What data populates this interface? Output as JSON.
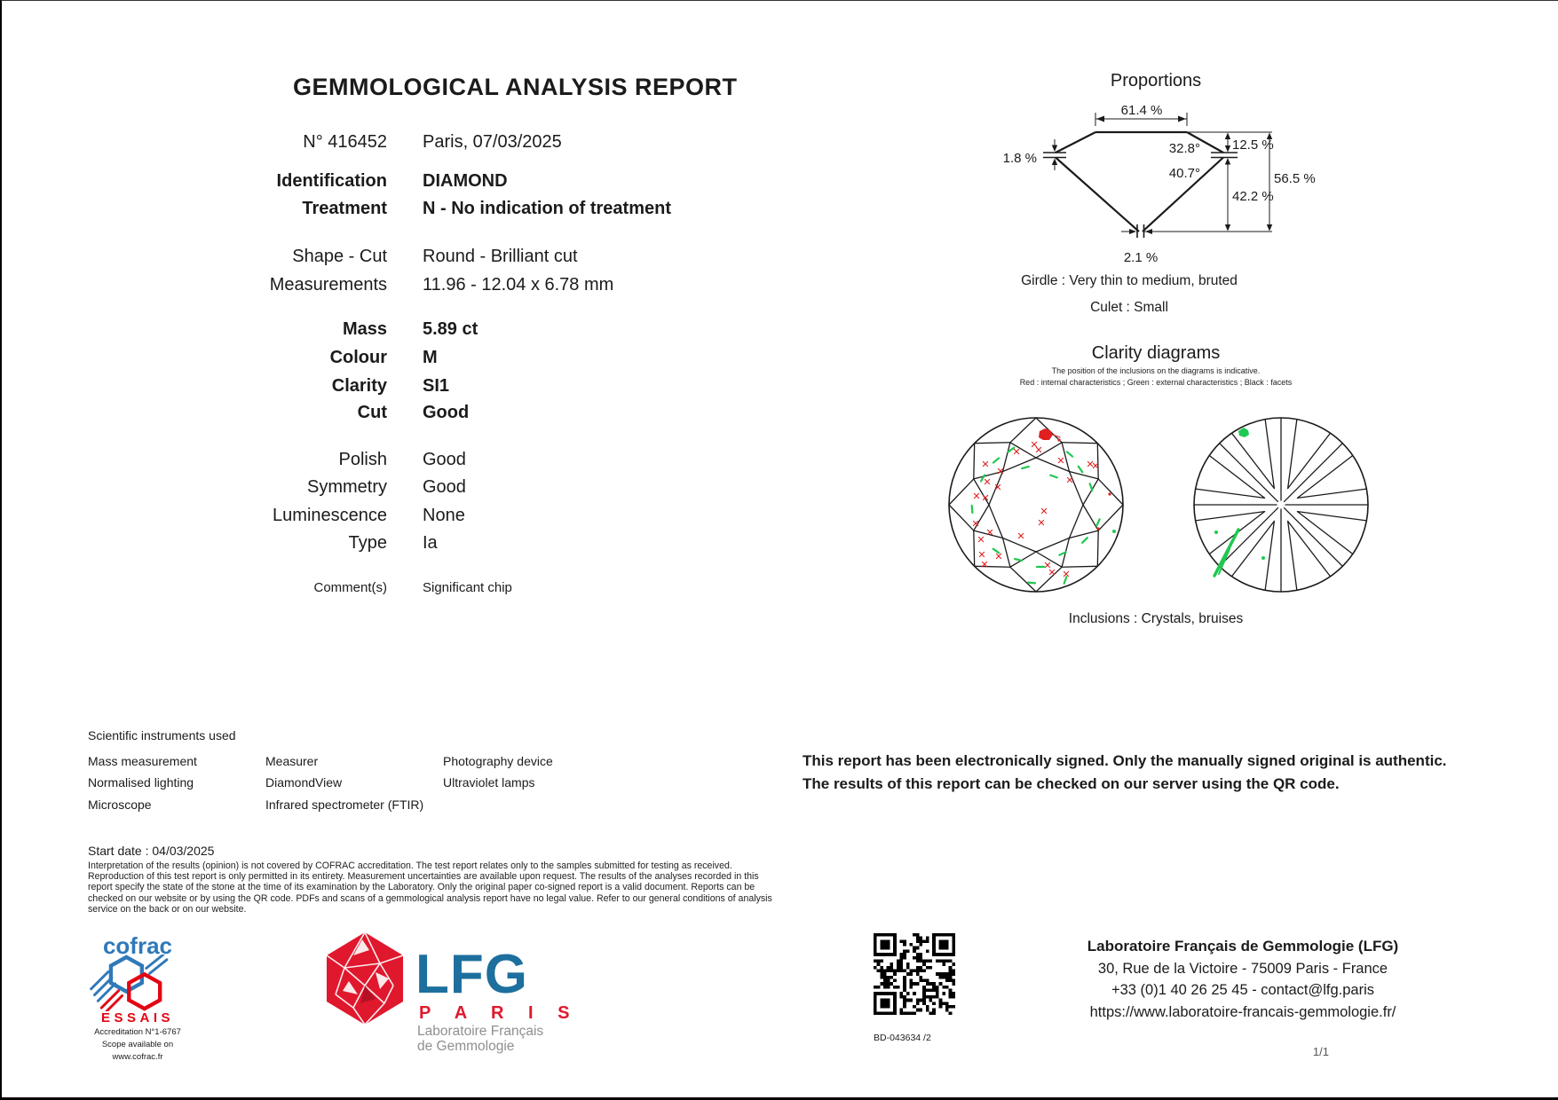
{
  "header": {
    "title": "GEMMOLOGICAL ANALYSIS REPORT"
  },
  "fields": [
    {
      "label": "N° 416452",
      "value": "Paris, 07/03/2025"
    },
    {
      "label": "Identification",
      "value": "DIAMOND"
    },
    {
      "label": "Treatment",
      "value": "N - No indication of treatment"
    },
    {
      "label": "Shape - Cut",
      "value": "Round - Brilliant cut"
    },
    {
      "label": "Measurements",
      "value": "11.96 - 12.04 x 6.78 mm"
    },
    {
      "label": "Mass",
      "value": "5.89  ct"
    },
    {
      "label": "Colour",
      "value": "M"
    },
    {
      "label": "Clarity",
      "value": "SI1"
    },
    {
      "label": "Cut",
      "value": "Good"
    },
    {
      "label": "Polish",
      "value": "Good"
    },
    {
      "label": "Symmetry",
      "value": "Good"
    },
    {
      "label": "Luminescence",
      "value": "None"
    },
    {
      "label": "Type",
      "value": "Ia"
    },
    {
      "label": "Comment(s)",
      "value": "Significant chip"
    }
  ],
  "proportions": {
    "title": "Proportions",
    "table_pct": "61.4 %",
    "girdle_pct": "1.8 %",
    "crown_angle": "32.8°",
    "pavilion_angle": "40.7°",
    "crown_height_pct": "12.5 %",
    "pavilion_depth_pct": "42.2 %",
    "total_depth_pct": "56.5 %",
    "culet_pct": "2.1 %",
    "girdle_note": "Girdle : Very thin to medium, bruted",
    "culet_note": "Culet : Small"
  },
  "clarity": {
    "title": "Clarity diagrams",
    "note1": "The position of the inclusions on the diagrams is indicative.",
    "note2": "Red : internal characteristics  ; Green : external characteristics  ; Black : facets",
    "inclusions": "Inclusions : Crystals, bruises"
  },
  "instruments": {
    "heading": "Scientific instruments used",
    "col1": [
      "Mass measurement",
      "Normalised lighting",
      "Microscope"
    ],
    "col2": [
      "Measurer",
      "DiamondView",
      "Infrared spectrometer (FTIR)"
    ],
    "col3": [
      "Photography device",
      "Ultraviolet lamps"
    ]
  },
  "signature": {
    "line1": "This report has been electronically signed. Only the manually signed original is authentic.",
    "line2": "The results of this report can be checked on our server using the QR code."
  },
  "start_date": "Start date : 04/03/2025",
  "legal": "Interpretation of the results (opinion) is not covered by COFRAC accreditation. The test report relates only to the samples submitted for testing as received. Reproduction of this test report is only permitted in its entirety. Measurement uncertainties are available upon request. The results of the analyses recorded in this report specify the state of the stone at the time of its examination by the Laboratory. Only the original paper co-signed report is a valid document. Reports can be checked on our website or by using the QR code. PDFs and scans of a gemmological analysis report have no legal value. Refer to our general conditions of analysis service on the back or on our website.",
  "footer": {
    "cofrac": {
      "wordmark": "cofrac",
      "essais": "ESSAIS",
      "accreditation": "Accreditation N°1-6767",
      "scope1": "Scope available on",
      "scope2": "www.cofrac.fr"
    },
    "lfg": {
      "wordmark": "LFG",
      "city": "P A R I S",
      "sub1": "Laboratoire Français",
      "sub2": "de Gemmologie"
    },
    "qr_label": "BD-043634 /2",
    "lab": {
      "name": "Laboratoire Français de Gemmologie (LFG)",
      "address": "30, Rue de la Victoire  -  75009 Paris - France",
      "phone": "+33 (0)1 40 26 25 45 - contact@lfg.paris",
      "website": "https://www.laboratoire-francais-gemmologie.fr/"
    },
    "page": "1/1"
  },
  "colors": {
    "lfg_blue": "#1d6f9e",
    "lfg_red": "#e0182d",
    "cofrac_blue": "#2e79b9",
    "cofrac_red": "#e30613",
    "mark_red": "#e02020",
    "mark_green": "#1ec94f",
    "line_black": "#1b1b1b"
  },
  "clarity_marks": {
    "crown_chip": [
      10,
      -79
    ],
    "crown_red_x": [
      [
        -2,
        -68
      ],
      [
        3,
        -62
      ],
      [
        -22,
        -60
      ],
      [
        -57,
        -46
      ],
      [
        -40,
        -38
      ],
      [
        28,
        -50
      ],
      [
        61,
        -46
      ],
      [
        67,
        -44
      ],
      [
        38,
        -28
      ],
      [
        -55,
        -26
      ],
      [
        -43,
        -20
      ],
      [
        -67,
        -10
      ],
      [
        -57,
        -8
      ],
      [
        9,
        7
      ],
      [
        6,
        20
      ],
      [
        -17,
        35
      ],
      [
        -68,
        21
      ],
      [
        -52,
        31
      ],
      [
        -62,
        39
      ],
      [
        -61,
        56
      ],
      [
        -58,
        67
      ],
      [
        -42,
        58
      ],
      [
        13,
        68
      ],
      [
        18,
        76
      ],
      [
        34,
        78
      ]
    ],
    "crown_red_dots": [
      [
        83,
        -12
      ],
      [
        70,
        27
      ],
      [
        26,
        -73
      ]
    ],
    "crown_green": [
      [
        -28,
        -62,
        -35
      ],
      [
        -45,
        -50,
        -40
      ],
      [
        38,
        -57,
        40
      ],
      [
        50,
        -40,
        55
      ],
      [
        62,
        -20,
        70
      ],
      [
        -60,
        -30,
        -60
      ],
      [
        -72,
        5,
        85
      ],
      [
        -45,
        52,
        35
      ],
      [
        -20,
        62,
        15
      ],
      [
        5,
        70,
        0
      ],
      [
        30,
        55,
        -25
      ],
      [
        55,
        40,
        -45
      ],
      [
        70,
        20,
        -65
      ],
      [
        20,
        -32,
        20
      ],
      [
        -12,
        -42,
        -15
      ],
      [
        33,
        85,
        -70
      ],
      [
        -5,
        88,
        5
      ]
    ],
    "crown_green_dots": [
      [
        88,
        30
      ]
    ],
    "pavilion_green_blob": [
      -42,
      -82
    ],
    "pavilion_green_lines": [
      [
        -48,
        28,
        -75,
        80,
        3.5
      ],
      [
        -58,
        50,
        -70,
        78,
        2
      ]
    ],
    "pavilion_green_dots": [
      [
        -73,
        31
      ],
      [
        -20,
        60
      ]
    ]
  }
}
